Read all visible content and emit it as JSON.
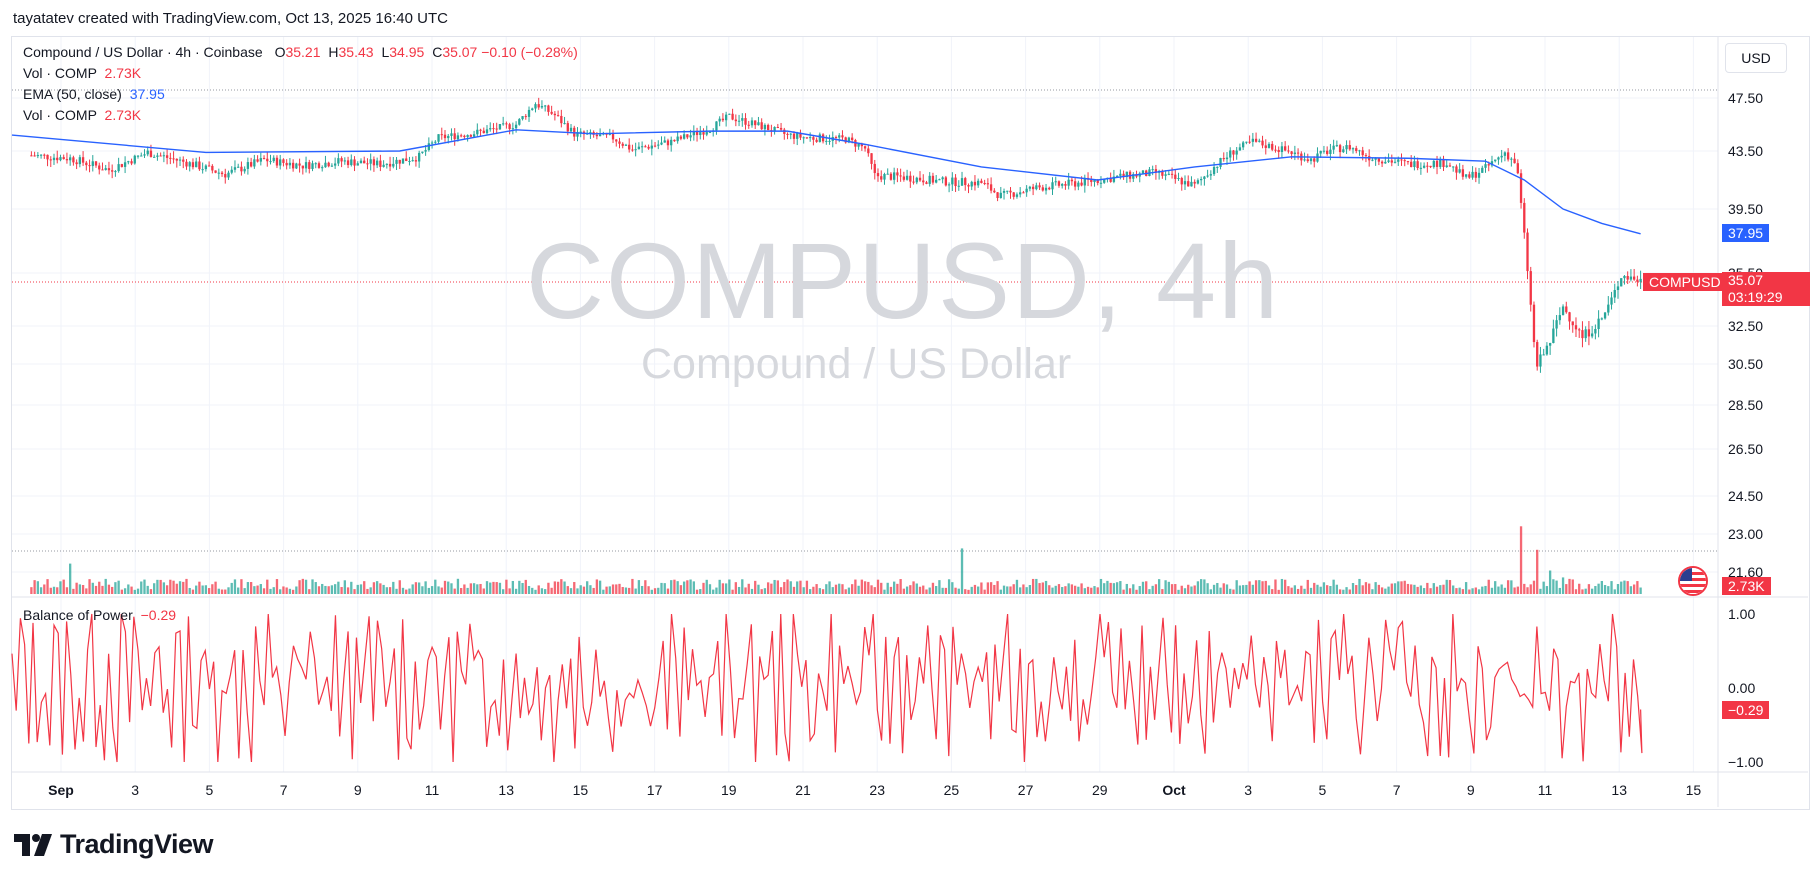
{
  "header": {
    "attribution": "tayatatev created with TradingView.com, Oct 13, 2025 16:40 UTC"
  },
  "legend": {
    "symbol": "Compound / US Dollar · 4h · Coinbase",
    "o_label": "O",
    "o_value": "35.21",
    "h_label": "H",
    "h_value": "35.43",
    "l_label": "L",
    "l_value": "34.95",
    "c_label": "C",
    "c_value": "35.07",
    "change": "−0.10 (−0.28%)",
    "vol1_label": "Vol · COMP",
    "vol1_value": "2.73K",
    "ema_label": "EMA (50, close)",
    "ema_value": "37.95",
    "vol2_label": "Vol · COMP",
    "vol2_value": "2.73K"
  },
  "currency_button": "USD",
  "watermark": {
    "symbol": "COMPUSD, 4h",
    "name": "Compound / US Dollar"
  },
  "price_tags": {
    "ema": "37.95",
    "symbol_label": "COMPUSD",
    "last_price": "35.07",
    "countdown": "03:19:29",
    "volume": "2.73K"
  },
  "indicator": {
    "label": "Balance of Power",
    "value": "−0.29",
    "tag": "−0.29"
  },
  "footer": {
    "brand": "TradingView"
  },
  "colors": {
    "up": "#26a69a",
    "down": "#f23645",
    "ema": "#2962ff",
    "grid": "#f0f3fa",
    "bop": "#f23645"
  },
  "chart_data": [
    {
      "type": "candlestick",
      "title": "Compound / US Dollar · 4h · Coinbase",
      "ylim": [
        21,
        49
      ],
      "y_ticks": [
        "47.50",
        "43.50",
        "39.50",
        "35.50",
        "32.50",
        "30.50",
        "28.50",
        "26.50",
        "24.50",
        "23.00",
        "21.60"
      ],
      "x_ticks": [
        "Sep",
        "3",
        "5",
        "7",
        "9",
        "11",
        "13",
        "15",
        "17",
        "19",
        "21",
        "23",
        "25",
        "27",
        "29",
        "Oct",
        "3",
        "5",
        "7",
        "9",
        "11",
        "13",
        "15"
      ],
      "close_path": [
        [
          1,
          43.2
        ],
        [
          3,
          43.0
        ],
        [
          5,
          42.2
        ],
        [
          7,
          43.4
        ],
        [
          9,
          42.7
        ],
        [
          11,
          41.9
        ],
        [
          13,
          42.9
        ],
        [
          15,
          42.5
        ],
        [
          17,
          42.8
        ],
        [
          19,
          42.6
        ],
        [
          21,
          43.1
        ],
        [
          22,
          44.5
        ],
        [
          24,
          44.9
        ],
        [
          26,
          45.5
        ],
        [
          27,
          47.1
        ],
        [
          28,
          46.2
        ],
        [
          29,
          44.8
        ],
        [
          31,
          44.5
        ],
        [
          32,
          43.6
        ],
        [
          34,
          44.2
        ],
        [
          36,
          45.2
        ],
        [
          37,
          46.1
        ],
        [
          39,
          45.2
        ],
        [
          40,
          44.7
        ],
        [
          41,
          44.5
        ],
        [
          43,
          44.4
        ],
        [
          44,
          43.7
        ],
        [
          44.5,
          41.8
        ],
        [
          46,
          41.7
        ],
        [
          48,
          41.4
        ],
        [
          50,
          41.3
        ],
        [
          51,
          40.4
        ],
        [
          53,
          41.0
        ],
        [
          55,
          41.3
        ],
        [
          57,
          41.7
        ],
        [
          59,
          42.0
        ],
        [
          61,
          41.1
        ],
        [
          62,
          42.4
        ],
        [
          63,
          43.5
        ],
        [
          64,
          44.2
        ],
        [
          66,
          43.4
        ],
        [
          67,
          42.9
        ],
        [
          68,
          43.6
        ],
        [
          69,
          43.8
        ],
        [
          70,
          43.1
        ],
        [
          72,
          42.6
        ],
        [
          74,
          42.7
        ],
        [
          75,
          41.6
        ],
        [
          76,
          42.3
        ],
        [
          77,
          43.4
        ],
        [
          77.6,
          42.6
        ],
        [
          78,
          37.8
        ],
        [
          78.6,
          30.3
        ],
        [
          79.3,
          31.6
        ],
        [
          80,
          33.6
        ],
        [
          81,
          31.9
        ],
        [
          82,
          32.9
        ],
        [
          82.6,
          34.2
        ],
        [
          83,
          35.4
        ],
        [
          84,
          35.07
        ]
      ],
      "volume_spikes": [
        [
          3,
          2.2
        ],
        [
          23,
          1.1
        ],
        [
          40,
          1.05
        ],
        [
          49,
          3.3
        ],
        [
          77.8,
          4.9
        ],
        [
          78.6,
          3.2
        ],
        [
          79.3,
          1.7
        ],
        [
          80,
          1.2
        ]
      ],
      "volume_ylim": [
        0,
        11
      ]
    },
    {
      "type": "line",
      "series": [
        {
          "name": "EMA (50, close)",
          "values": [
            [
              0,
              44.7
            ],
            [
              10,
              43.4
            ],
            [
              20,
              43.5
            ],
            [
              26,
              45.1
            ],
            [
              30,
              44.8
            ],
            [
              36,
              45.0
            ],
            [
              40,
              45.0
            ],
            [
              44,
              44.0
            ],
            [
              50,
              42.4
            ],
            [
              56,
              41.5
            ],
            [
              61,
              42.4
            ],
            [
              66,
              43.1
            ],
            [
              72,
              43.0
            ],
            [
              76,
              42.8
            ],
            [
              78,
              41.5
            ],
            [
              80,
              39.5
            ],
            [
              82,
              38.6
            ],
            [
              84,
              37.95
            ]
          ]
        }
      ],
      "last_value": 37.95
    },
    {
      "type": "line",
      "title": "Balance of Power",
      "ylim": [
        -1.0,
        1.0
      ],
      "y_ticks": [
        "1.00",
        "0.00",
        "−1.00"
      ],
      "series": [
        {
          "name": "Balance of Power",
          "values": [
            0.2,
            -0.7,
            0.6,
            0.9,
            -0.3,
            0.5,
            -0.6,
            0.8,
            0.1,
            -0.8,
            0.7,
            0.3,
            -0.5,
            0.9,
            -0.2,
            -0.29
          ]
        }
      ],
      "last_value": -0.29
    }
  ]
}
